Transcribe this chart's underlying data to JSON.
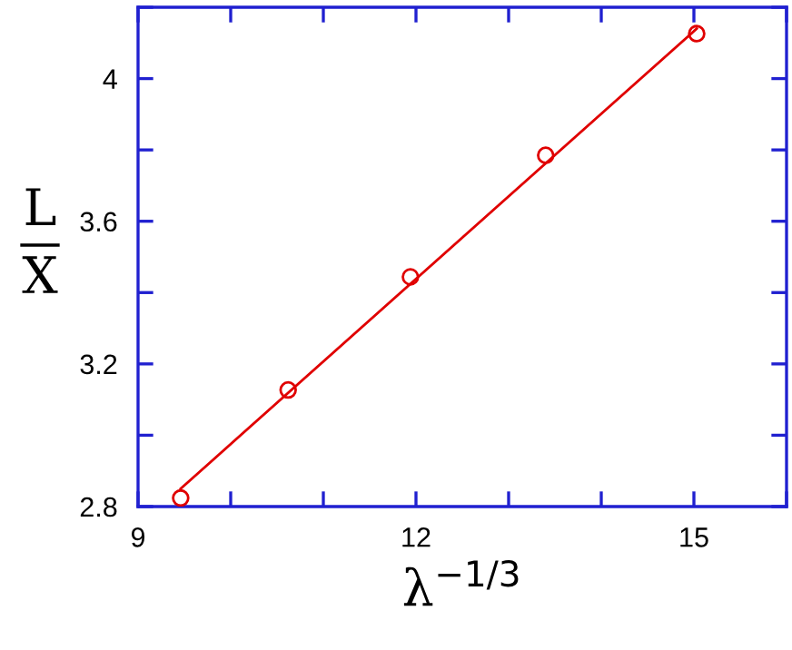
{
  "chart_data": {
    "type": "scatter",
    "xlabel": "λ$^{−1/3}$",
    "ylabel": "L\nX",
    "x": [
      9.46,
      10.62,
      11.94,
      13.4,
      15.03
    ],
    "series": [
      {
        "color": "#e00000",
        "marker": "circle",
        "values": [
          2.824,
          3.127,
          3.444,
          3.785,
          4.126
        ]
      },
      {
        "type": "line",
        "color": "#e00000",
        "x": [
          9.46,
          15.03
        ],
        "values": [
          2.85,
          4.14
        ]
      }
    ],
    "xlim": [
      9,
      16
    ],
    "ylim": [
      2.8,
      4.2
    ],
    "xticks": [
      9,
      {
        "value": 10,
        "label": null
      },
      {
        "value": 11,
        "label": null
      },
      12,
      {
        "value": 13,
        "label": null
      },
      {
        "value": 14,
        "label": null
      },
      15,
      {
        "value": 16,
        "label": null
      }
    ],
    "yticks": [
      2.8,
      {
        "value": 3.0,
        "label": null
      },
      3.2,
      {
        "value": 3.4,
        "label": null
      },
      3.6,
      {
        "value": 3.8,
        "label": null
      },
      4,
      {
        "value": 4.2,
        "label": null
      }
    ],
    "grid": false,
    "legend": false
  }
}
